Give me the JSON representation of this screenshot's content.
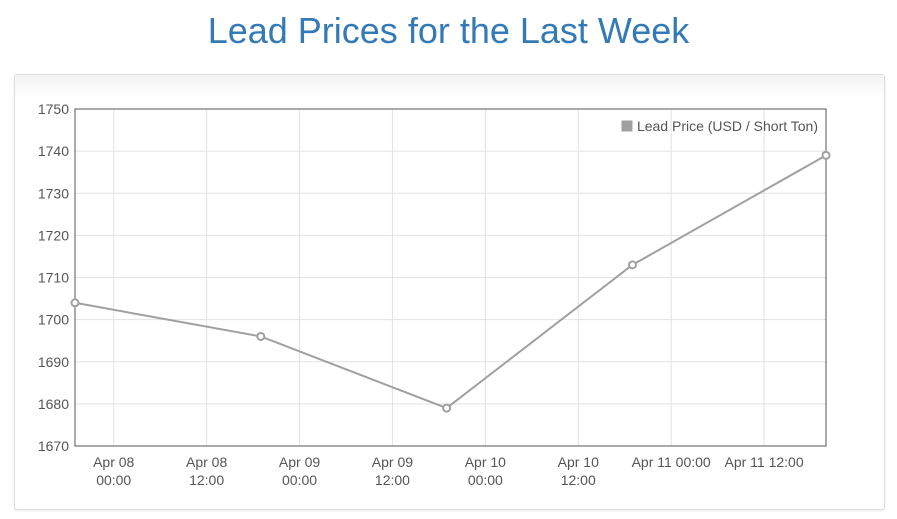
{
  "title": "Lead Prices for the Last Week",
  "chart_data": {
    "type": "line",
    "title": "Lead Prices for the Last Week",
    "xlabel": "",
    "ylabel": "",
    "ylim": [
      1670,
      1750
    ],
    "yticks": [
      1670,
      1680,
      1690,
      1700,
      1710,
      1720,
      1730,
      1740,
      1750
    ],
    "xlim": [
      "2019-04-07 19:00",
      "2019-04-11 20:00"
    ],
    "xticks": [
      {
        "t": "2019-04-08 00:00",
        "line1": "Apr 08",
        "line2": "00:00"
      },
      {
        "t": "2019-04-08 12:00",
        "line1": "Apr 08",
        "line2": "12:00"
      },
      {
        "t": "2019-04-09 00:00",
        "line1": "Apr 09",
        "line2": "00:00"
      },
      {
        "t": "2019-04-09 12:00",
        "line1": "Apr 09",
        "line2": "12:00"
      },
      {
        "t": "2019-04-10 00:00",
        "line1": "Apr 10",
        "line2": "00:00"
      },
      {
        "t": "2019-04-10 12:00",
        "line1": "Apr 10",
        "line2": "12:00"
      },
      {
        "t": "2019-04-11 00:00",
        "line1": "Apr 11 00:00",
        "line2": ""
      },
      {
        "t": "2019-04-11 12:00",
        "line1": "Apr 11 12:00",
        "line2": ""
      }
    ],
    "grid": true,
    "legend_position": "top-right",
    "series": [
      {
        "name": "Lead Price (USD / Short Ton)",
        "color": "#a0a0a0",
        "x": [
          "2019-04-07 19:00",
          "2019-04-08 19:00",
          "2019-04-09 19:00",
          "2019-04-10 19:00",
          "2019-04-11 20:00"
        ],
        "values": [
          1704,
          1696,
          1679,
          1713,
          1739
        ]
      }
    ]
  }
}
